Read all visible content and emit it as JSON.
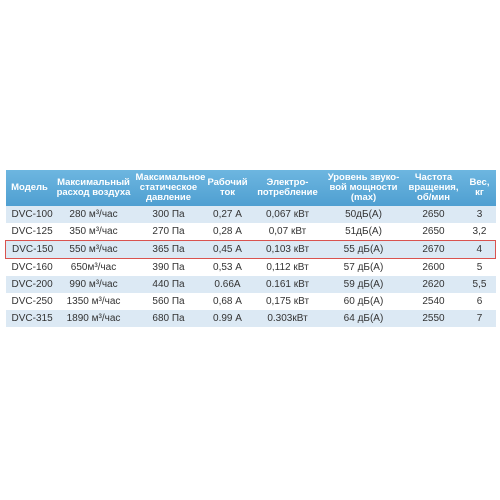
{
  "table": {
    "header": [
      "Модель",
      "Максимальный\nрасход воздуха",
      "Максимальное\nстатическое\nдавление",
      "Рабочий\nток",
      "Электро-\nпотребление",
      "Уровень звуко-\nвой мощности\n(max)",
      "Частота\nвращения,\nоб/мин",
      "Вес,\nкг"
    ],
    "rows": [
      [
        "DVC-100",
        "280 м³/час",
        "300 Па",
        "0,27 А",
        "0,067 кВт",
        "50дБ(А)",
        "2650",
        "3"
      ],
      [
        "DVC-125",
        "350 м³/час",
        "270 Па",
        "0,28 А",
        "0,07 кВт",
        "51дБ(А)",
        "2650",
        "3,2"
      ],
      [
        "DVC-150",
        "550 м³/час",
        "365 Па",
        "0,45 А",
        "0,103 кВт",
        "55 дБ(А)",
        "2670",
        "4"
      ],
      [
        "DVC-160",
        "650м³/час",
        "390 Па",
        "0,53 А",
        "0,112 кВт",
        "57 дБ(А)",
        "2600",
        "5"
      ],
      [
        "DVC-200",
        "990 м³/час",
        "440 Па",
        "0.66A",
        "0.161 кВт",
        "59 дБ(А)",
        "2620",
        "5,5"
      ],
      [
        "DVC-250",
        "1350 м³/час",
        "560 Па",
        "0,68 А",
        "0,175 кВт",
        "60 дБ(А)",
        "2540",
        "6"
      ],
      [
        "DVC-315",
        "1890 м³/час",
        "680 Па",
        "0.99 А",
        "0.303кВт",
        "64 дБ(А)",
        "2550",
        "7"
      ]
    ],
    "highlighted_row": 2
  }
}
